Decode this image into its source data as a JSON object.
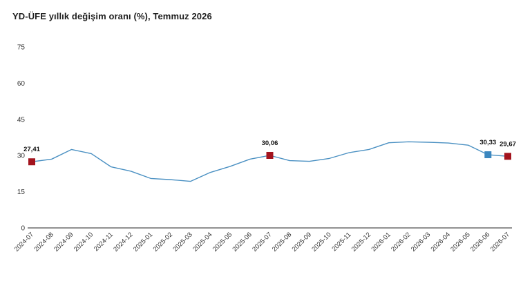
{
  "colors": {
    "line": "#4a90c2",
    "marker_red": "#a3141e",
    "marker_blue": "#3b87bf",
    "axis": "#222222"
  },
  "chart_data": {
    "type": "line",
    "title": "YD-ÜFE yıllık değişim oranı (%), Temmuz 2026",
    "xlabel": "",
    "ylabel": "",
    "ylim": [
      0,
      75
    ],
    "yticks": [
      0,
      15,
      30,
      45,
      60,
      75
    ],
    "grid": false,
    "legend": "none",
    "categories": [
      "2024-07",
      "2024-08",
      "2024-09",
      "2024-10",
      "2024-11",
      "2024-12",
      "2025-01",
      "2025-02",
      "2025-03",
      "2025-04",
      "2025-05",
      "2025-06",
      "2025-07",
      "2025-08",
      "2025-09",
      "2025-10",
      "2025-11",
      "2025-12",
      "2026-01",
      "2026-02",
      "2026-03",
      "2026-04",
      "2026-05",
      "2026-06",
      "2026-07"
    ],
    "series": [
      {
        "values": [
          27.41,
          28.5,
          32.5,
          30.8,
          25.3,
          23.5,
          20.5,
          20.0,
          19.3,
          23.0,
          25.5,
          28.5,
          30.06,
          27.9,
          27.6,
          28.8,
          31.2,
          32.5,
          35.3,
          35.7,
          35.5,
          35.2,
          34.3,
          30.33,
          29.67
        ]
      }
    ],
    "data_labels": [
      {
        "category": "2024-07",
        "text": "27,41",
        "marker": "red"
      },
      {
        "category": "2025-07",
        "text": "30,06",
        "marker": "red"
      },
      {
        "category": "2026-06",
        "text": "30,33",
        "marker": "blue"
      },
      {
        "category": "2026-07",
        "text": "29,67",
        "marker": "red"
      }
    ]
  }
}
